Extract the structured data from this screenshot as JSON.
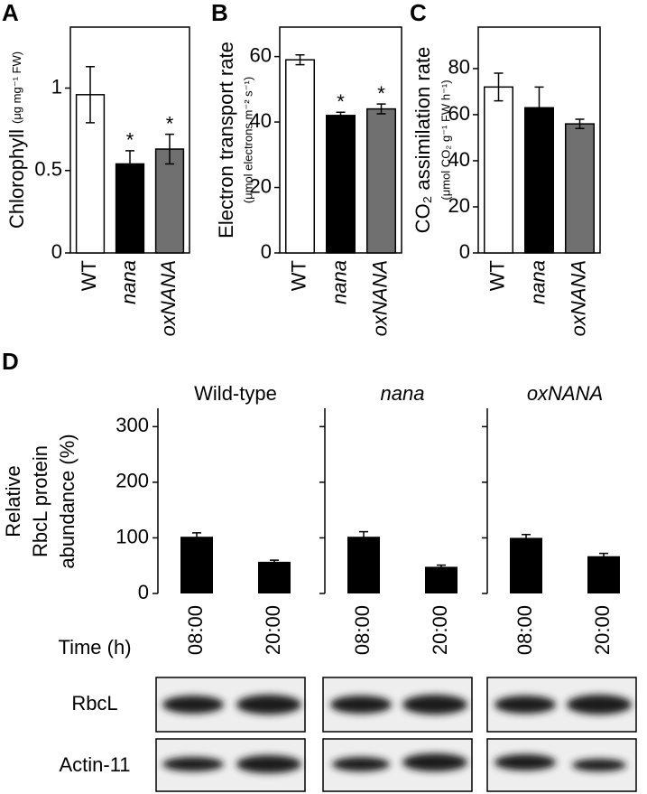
{
  "chart_data": [
    {
      "type": "bar",
      "label": "A",
      "ylabel": "Chlorophyll",
      "ylabel_unit": "(μg mg⁻¹ FW)",
      "categories": [
        "WT",
        "nana",
        "oxNANA"
      ],
      "values": [
        0.96,
        0.54,
        0.63
      ],
      "errors": [
        0.17,
        0.08,
        0.09
      ],
      "markers": [
        null,
        "*",
        "*"
      ],
      "colors": [
        "#ffffff",
        "#000000",
        "#707070"
      ],
      "ylim": [
        0,
        1.37
      ],
      "yticks": [
        0,
        0.5,
        1
      ]
    },
    {
      "type": "bar",
      "label": "B",
      "ylabel": "Electron transport rate",
      "ylabel_unit": "(μmol electrons m⁻² s⁻¹)",
      "categories": [
        "WT",
        "nana",
        "oxNANA"
      ],
      "values": [
        59,
        42,
        44
      ],
      "errors": [
        1.5,
        1,
        1.5
      ],
      "markers": [
        null,
        "*",
        "*"
      ],
      "colors": [
        "#ffffff",
        "#000000",
        "#707070"
      ],
      "ylim": [
        0,
        69
      ],
      "yticks": [
        0,
        20,
        40,
        60
      ]
    },
    {
      "type": "bar",
      "label": "C",
      "ylabel": "CO₂ assimilation rate",
      "ylabel_unit": "(μmol CO₂ g⁻¹ FW h⁻¹)",
      "categories": [
        "WT",
        "nana",
        "oxNANA"
      ],
      "values": [
        72,
        63,
        56
      ],
      "errors": [
        6,
        9,
        2
      ],
      "colors": [
        "#ffffff",
        "#000000",
        "#707070"
      ],
      "ylim": [
        0,
        98
      ],
      "yticks": [
        0,
        20,
        40,
        60,
        80
      ]
    },
    {
      "type": "panel-bar",
      "label": "D",
      "ylabel": [
        "Relative",
        "RbcL protein",
        "abundance (%)"
      ],
      "xlabel": "Time (h)",
      "categories": [
        "08:00",
        "20:00"
      ],
      "color": "#000000",
      "panels": [
        {
          "title": "Wild-type",
          "values": [
            102,
            57
          ],
          "errors": [
            7,
            3
          ]
        },
        {
          "title": "nana",
          "values": [
            102,
            48
          ],
          "errors": [
            9,
            3
          ]
        },
        {
          "title": "oxNANA",
          "values": [
            100,
            67
          ],
          "errors": [
            6,
            5
          ]
        }
      ],
      "ylim": [
        0,
        333
      ],
      "yticks": [
        0,
        100,
        200,
        300
      ],
      "blot_labels": [
        "RbcL",
        "Actin-11"
      ]
    }
  ]
}
